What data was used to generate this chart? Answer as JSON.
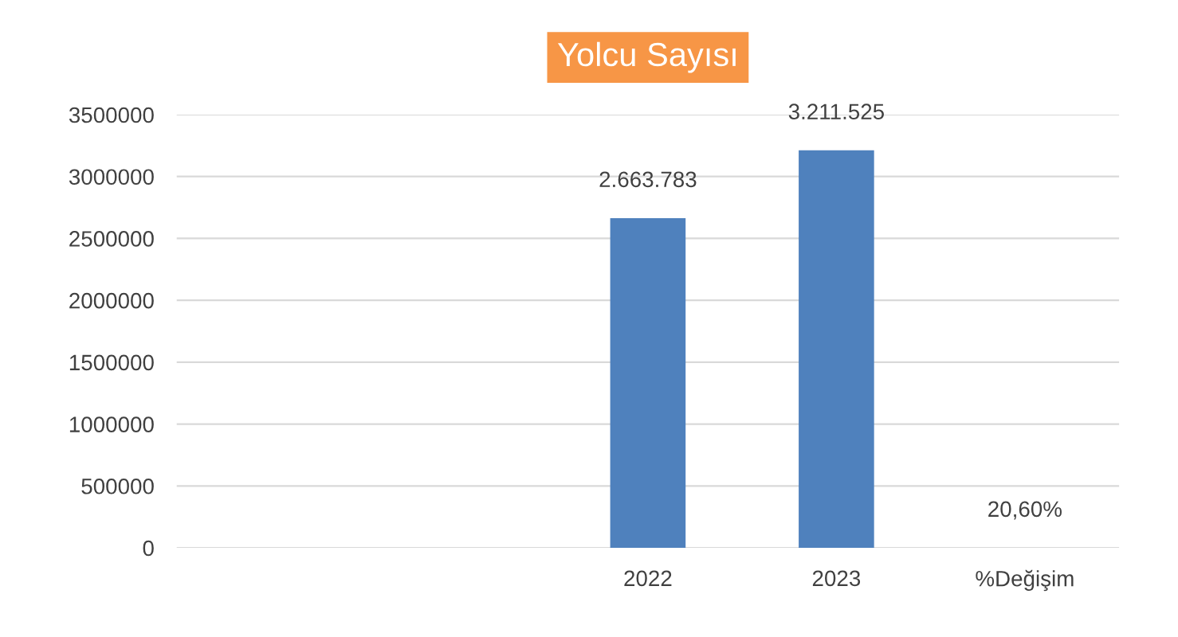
{
  "chart_data": {
    "type": "bar",
    "title": "Yolcu Sayısı",
    "categories": [
      null,
      null,
      "2022",
      "2023",
      "%Değişim"
    ],
    "values": [
      null,
      null,
      2663783,
      3211525,
      0.206
    ],
    "value_labels": [
      null,
      null,
      "2.663.783",
      "3.211.525",
      "20,60%"
    ],
    "color": "#4f81bd",
    "ylim": [
      0,
      3500000
    ],
    "yticks": [
      0,
      500000,
      1000000,
      1500000,
      2000000,
      2500000,
      3000000,
      3500000
    ],
    "grid": "y",
    "legend": false
  }
}
